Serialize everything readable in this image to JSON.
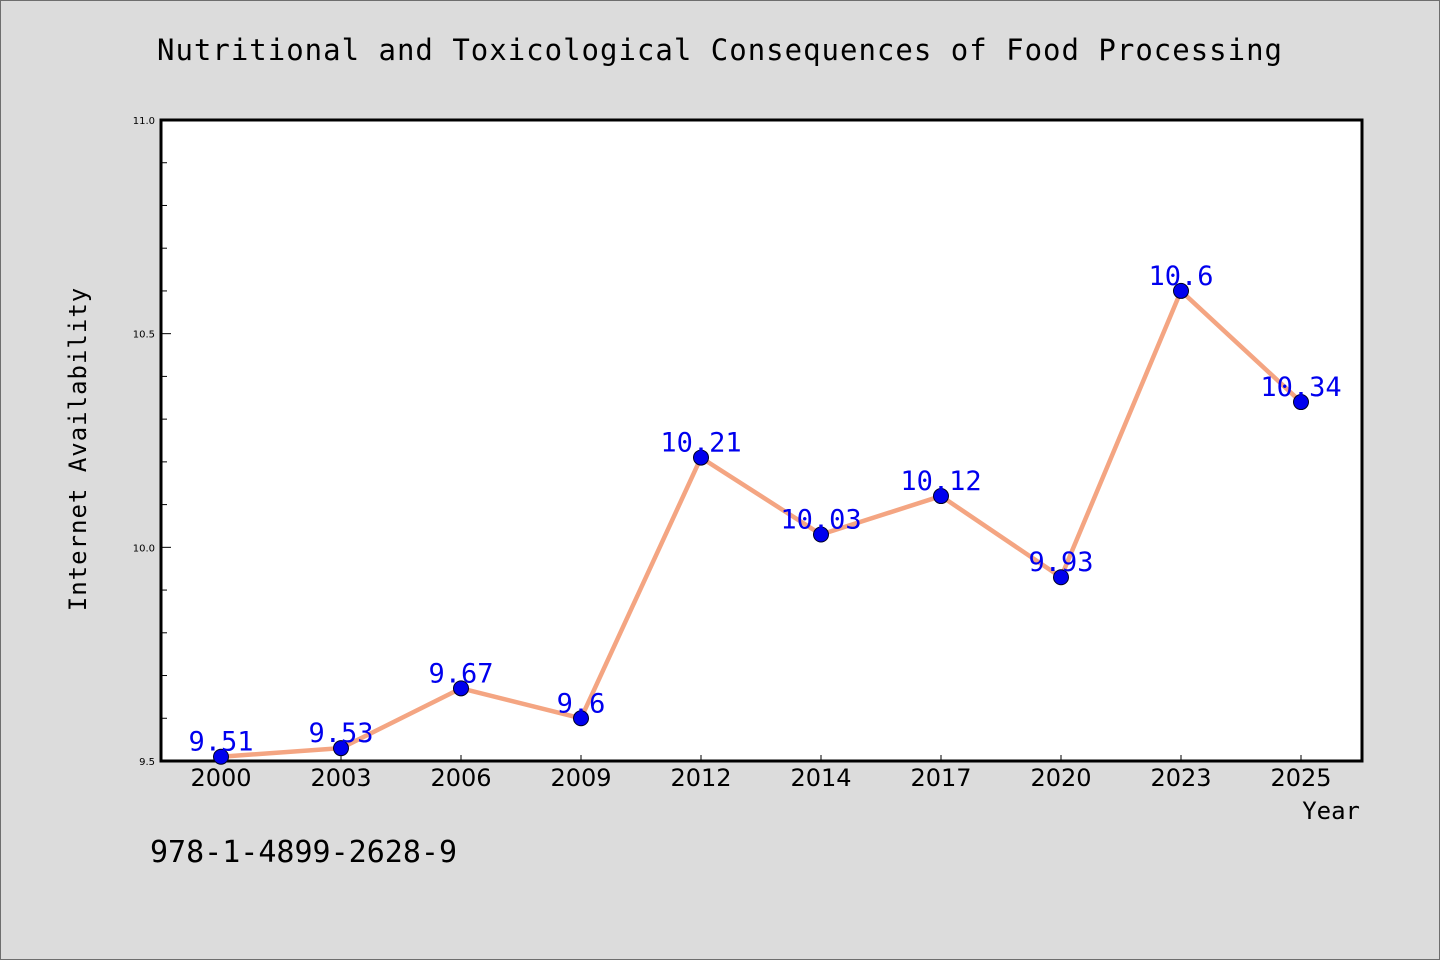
{
  "colors": {
    "background": "#dcdcdc",
    "plot_background": "#ffffff",
    "line": "#f4a582",
    "marker": "#0000ee",
    "data_label": "#0000ee"
  },
  "footer": {
    "isbn": "978-1-4899-2628-9"
  },
  "chart_data": {
    "type": "line",
    "title": "Nutritional and Toxicological Consequences of Food Processing",
    "xlabel": "Year",
    "ylabel": "Internet Availability",
    "categories": [
      "2000",
      "2003",
      "2006",
      "2009",
      "2012",
      "2014",
      "2017",
      "2020",
      "2023",
      "2025"
    ],
    "series": [
      {
        "values": [
          9.51,
          9.53,
          9.67,
          9.6,
          10.21,
          10.03,
          10.12,
          9.93,
          10.6,
          10.34
        ],
        "labels": [
          "9.51",
          "9.53",
          "9.67",
          "9.6",
          "10.21",
          "10.03",
          "10.12",
          "9.93",
          "10.6",
          "10.34"
        ]
      }
    ],
    "ylim": [
      9.5,
      11.0
    ],
    "yticks": [
      "9.5",
      "10.0",
      "10.5",
      "11.0"
    ],
    "grid": false,
    "legend": "none"
  }
}
